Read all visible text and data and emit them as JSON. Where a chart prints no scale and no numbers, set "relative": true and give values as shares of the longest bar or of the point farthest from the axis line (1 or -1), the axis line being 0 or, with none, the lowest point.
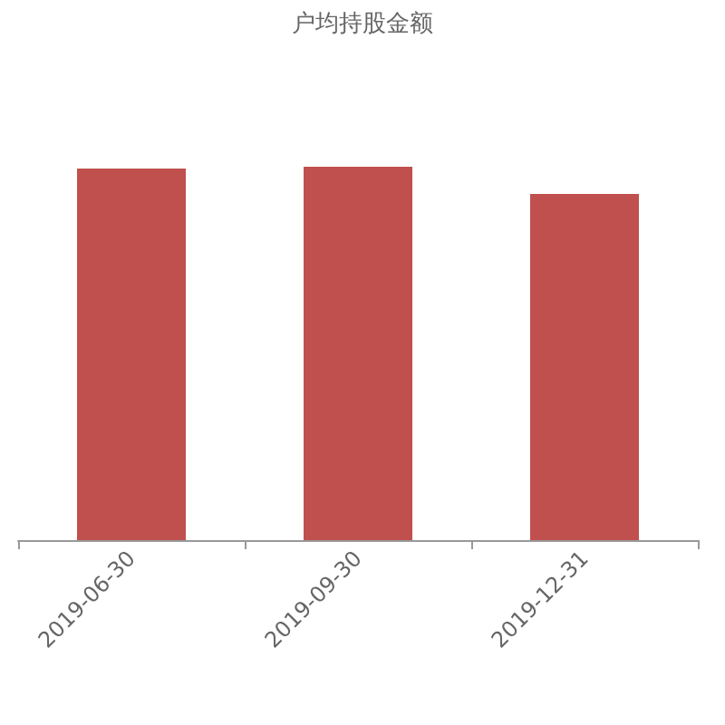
{
  "chart_data": {
    "type": "bar",
    "title": "户均持股金额",
    "categories": [
      "2019-06-30",
      "2019-09-30",
      "2019-12-31"
    ],
    "values": [
      0.995,
      1,
      0.927
    ],
    "color": "#c0504d",
    "relative": true
  }
}
